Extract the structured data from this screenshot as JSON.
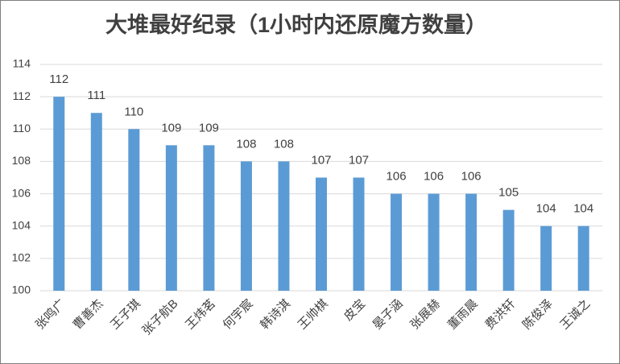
{
  "chart_data": {
    "type": "bar",
    "title": "大堆最好纪录（1小时内还原魔方数量）",
    "categories": [
      "张鸣广",
      "曹善杰",
      "王子琪",
      "张子航B",
      "王炜茗",
      "何宇宸",
      "韩诗淇",
      "王帅棋",
      "皮宝",
      "晏子涵",
      "张展赫",
      "董雨晨",
      "费洪轩",
      "陈俊泽",
      "王诚之"
    ],
    "values": [
      112,
      111,
      110,
      109,
      109,
      108,
      108,
      107,
      107,
      106,
      106,
      106,
      105,
      104,
      104
    ],
    "color": "#5b9bd5",
    "ylim": [
      100,
      114
    ],
    "yticks": [
      100,
      102,
      104,
      106,
      108,
      110,
      112,
      114
    ],
    "grid": true
  }
}
